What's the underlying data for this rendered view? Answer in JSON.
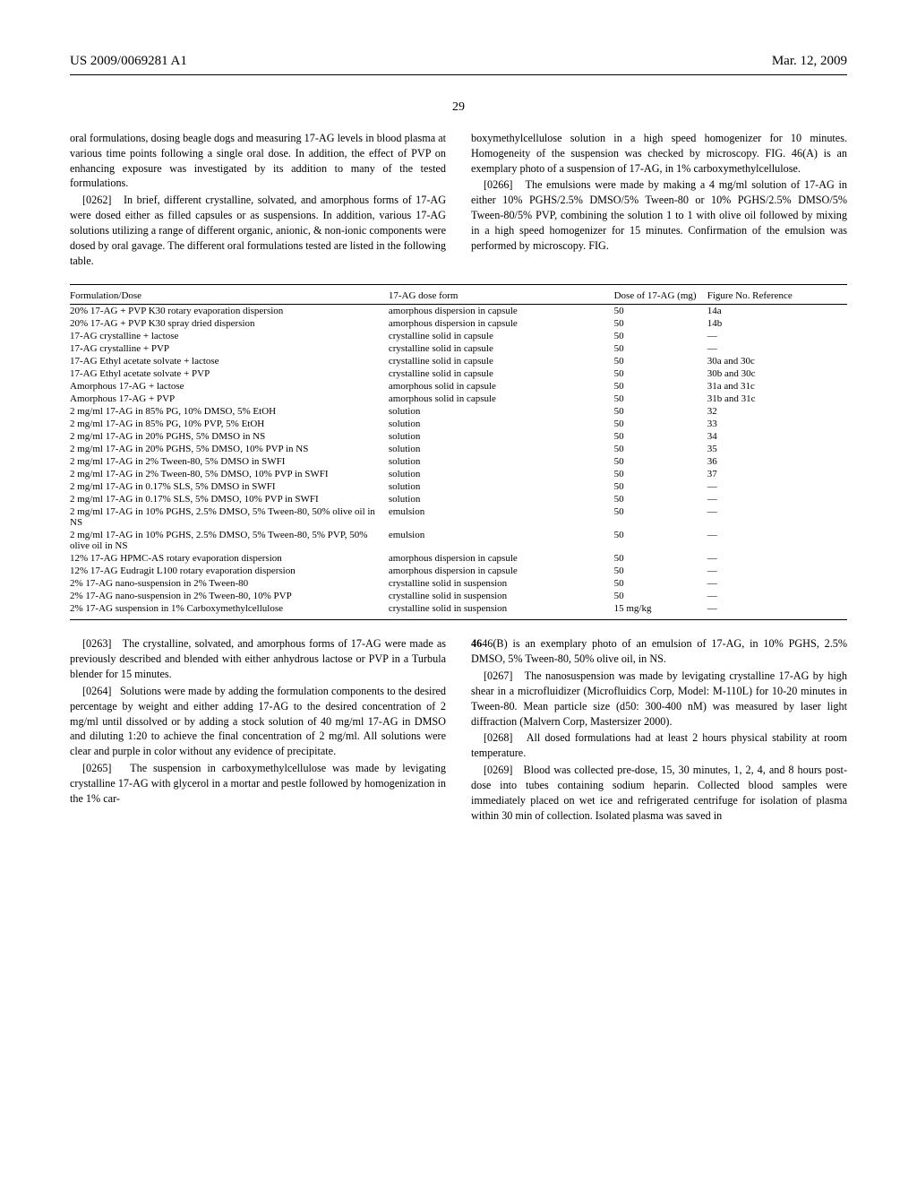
{
  "header": {
    "left": "US 2009/0069281 A1",
    "right": "Mar. 12, 2009",
    "page_center": "29"
  },
  "top_left_text": "oral formulations, dosing beagle dogs and measuring 17-AG levels in blood plasma at various time points following a single oral dose. In addition, the effect of PVP on enhancing exposure was investigated by its addition to many of the tested formulations.",
  "para0262_num": "[0262]",
  "para0262": "In brief, different crystalline, solvated, and amorphous forms of 17-AG were dosed either as filled capsules or as suspensions. In addition, various 17-AG solutions utilizing a range of different organic, anionic, & non-ionic components were dosed by oral gavage. The different oral formulations tested are listed in the following table.",
  "top_right_text": "boxymethylcellulose solution in a high speed homogenizer for 10 minutes. Homogeneity of the suspension was checked by microscopy. FIG. 46(A) is an exemplary photo of a suspension of 17-AG, in 1% carboxymethylcellulose.",
  "para0266_num": "[0266]",
  "para0266": "The emulsions were made by making a 4 mg/ml solution of 17-AG in either 10% PGHS/2.5% DMSO/5% Tween-80 or 10% PGHS/2.5% DMSO/5% Tween-80/5% PVP, combining the solution 1 to 1 with olive oil followed by mixing in a high speed homogenizer for 15 minutes. Confirmation of the emulsion was performed by microscopy. FIG.",
  "table": {
    "headers": [
      "Formulation/Dose",
      "17-AG dose form",
      "Dose of 17-AG (mg)",
      "Figure No. Reference"
    ],
    "rows": [
      [
        "20% 17-AG + PVP K30 rotary evaporation dispersion",
        "amorphous dispersion in capsule",
        "50",
        "14a"
      ],
      [
        "20% 17-AG + PVP K30 spray dried dispersion",
        "amorphous dispersion in capsule",
        "50",
        "14b"
      ],
      [
        "17-AG crystalline + lactose",
        "crystalline solid in capsule",
        "50",
        "—"
      ],
      [
        "17-AG crystalline + PVP",
        "crystalline solid in capsule",
        "50",
        "—"
      ],
      [
        "17-AG Ethyl acetate solvate + lactose",
        "crystalline solid in capsule",
        "50",
        "30a and 30c"
      ],
      [
        "17-AG Ethyl acetate solvate + PVP",
        "crystalline solid in capsule",
        "50",
        "30b and 30c"
      ],
      [
        "Amorphous 17-AG + lactose",
        "amorphous solid in capsule",
        "50",
        "31a and 31c"
      ],
      [
        "Amorphous 17-AG + PVP",
        "amorphous solid in capsule",
        "50",
        "31b and 31c"
      ],
      [
        "2 mg/ml 17-AG in 85% PG, 10% DMSO, 5% EtOH",
        "solution",
        "50",
        "32"
      ],
      [
        "2 mg/ml 17-AG in 85% PG, 10% PVP, 5% EtOH",
        "solution",
        "50",
        "33"
      ],
      [
        "2 mg/ml 17-AG in 20% PGHS, 5% DMSO in NS",
        "solution",
        "50",
        "34"
      ],
      [
        "2 mg/ml 17-AG in 20% PGHS, 5% DMSO, 10% PVP in NS",
        "solution",
        "50",
        "35"
      ],
      [
        "2 mg/ml 17-AG in 2% Tween-80, 5% DMSO in SWFI",
        "solution",
        "50",
        "36"
      ],
      [
        "2 mg/ml 17-AG in 2% Tween-80, 5% DMSO, 10% PVP in SWFI",
        "solution",
        "50",
        "37"
      ],
      [
        "2 mg/ml 17-AG in 0.17% SLS, 5% DMSO in SWFI",
        "solution",
        "50",
        "—"
      ],
      [
        "2 mg/ml 17-AG in 0.17% SLS, 5% DMSO, 10% PVP in SWFI",
        "solution",
        "50",
        "—"
      ],
      [
        "2 mg/ml 17-AG in 10% PGHS, 2.5% DMSO, 5% Tween-80, 50% olive oil in NS",
        "emulsion",
        "50",
        "—"
      ],
      [
        "2 mg/ml 17-AG in 10% PGHS, 2.5% DMSO, 5% Tween-80, 5% PVP, 50% olive oil in NS",
        "emulsion",
        "50",
        "—"
      ],
      [
        "12% 17-AG HPMC-AS rotary evaporation dispersion",
        "amorphous dispersion in capsule",
        "50",
        "—"
      ],
      [
        "12% 17-AG Eudragit L100 rotary evaporation dispersion",
        "amorphous dispersion in capsule",
        "50",
        "—"
      ],
      [
        "2% 17-AG nano-suspension in 2% Tween-80",
        "crystalline solid in suspension",
        "50",
        "—"
      ],
      [
        "2% 17-AG nano-suspension in 2% Tween-80, 10% PVP",
        "crystalline solid in suspension",
        "50",
        "—"
      ],
      [
        "2% 17-AG suspension in 1% Carboxymethylcellulose",
        "crystalline solid in suspension",
        "15 mg/kg",
        "—"
      ]
    ]
  },
  "para0263_num": "[0263]",
  "para0263": "The crystalline, solvated, and amorphous forms of 17-AG were made as previously described and blended with either anhydrous lactose or PVP in a Turbula blender for 15 minutes.",
  "para0264_num": "[0264]",
  "para0264": "Solutions were made by adding the formulation components to the desired percentage by weight and either adding 17-AG to the desired concentration of 2 mg/ml until dissolved or by adding a stock solution of 40 mg/ml 17-AG in DMSO and diluting 1:20 to achieve the final concentration of 2 mg/ml. All solutions were clear and purple in color without any evidence of precipitate.",
  "para0265_num": "[0265]",
  "para0265": "The suspension in carboxymethylcellulose was made by levigating crystalline 17-AG with glycerol in a mortar and pestle followed by homogenization in the 1% car-",
  "right_bottom_lead": "46(B) is an exemplary photo of an emulsion of 17-AG, in 10% PGHS, 2.5% DMSO, 5% Tween-80, 50% olive oil, in NS.",
  "para0267_num": "[0267]",
  "para0267": "The nanosuspension was made by levigating crystalline 17-AG by high shear in a microfluidizer (Microfluidics Corp, Model: M-110L) for 10-20 minutes in Tween-80. Mean particle size (d50: 300-400 nM) was measured by laser light diffraction (Malvern Corp, Mastersizer 2000).",
  "para0268_num": "[0268]",
  "para0268": "All dosed formulations had at least 2 hours physical stability at room temperature.",
  "para0269_num": "[0269]",
  "para0269": "Blood was collected pre-dose, 15, 30 minutes, 1, 2, 4, and 8 hours post-dose into tubes containing sodium heparin. Collected blood samples were immediately placed on wet ice and refrigerated centrifuge for isolation of plasma within 30 min of collection. Isolated plasma was saved in"
}
